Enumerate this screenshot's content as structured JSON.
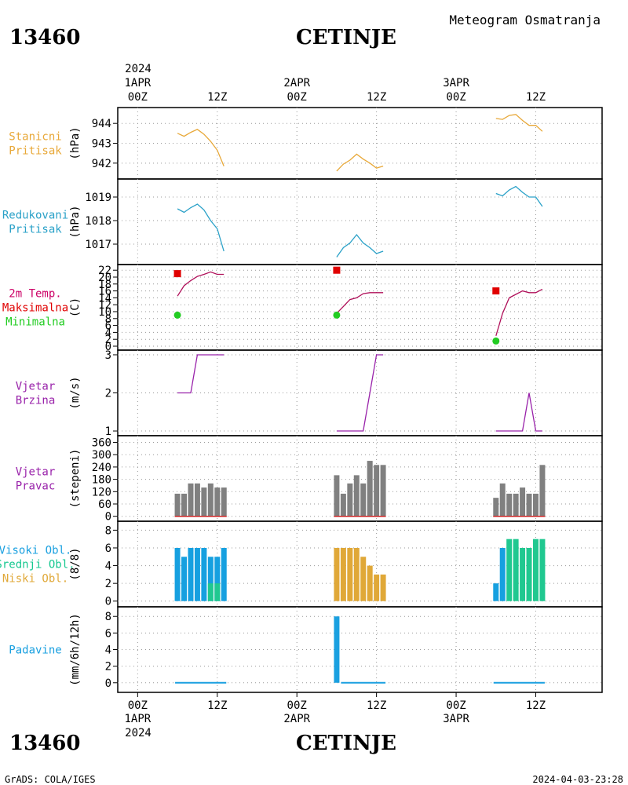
{
  "header": {
    "station_id": "13460",
    "station_name": "CETINJE",
    "product": "Meteogram Osmatranja"
  },
  "footer": {
    "station_id": "13460",
    "station_name": "CETINJE",
    "credit": "GrADS: COLA/IGES",
    "timestamp": "2024-04-03-23:28"
  },
  "time_axis": {
    "year": "2024",
    "top_labels": [
      {
        "t": 0,
        "day": "1APR",
        "hour": "00Z"
      },
      {
        "t": 12,
        "hour": "12Z"
      },
      {
        "t": 24,
        "day": "2APR",
        "hour": "00Z"
      },
      {
        "t": 36,
        "hour": "12Z"
      },
      {
        "t": 48,
        "day": "3APR",
        "hour": "00Z"
      },
      {
        "t": 60,
        "hour": "12Z"
      }
    ],
    "bottom_labels": [
      {
        "t": 0,
        "hour": "00Z",
        "day": "1APR"
      },
      {
        "t": 12,
        "hour": "12Z"
      },
      {
        "t": 24,
        "hour": "00Z",
        "day": "2APR"
      },
      {
        "t": 36,
        "hour": "12Z"
      },
      {
        "t": 48,
        "hour": "00Z",
        "day": "3APR"
      },
      {
        "t": 60,
        "hour": "12Z"
      }
    ],
    "range_hours": [
      -3,
      70
    ]
  },
  "chart_data": [
    {
      "type": "line",
      "name_lines": [
        "Stanicni",
        "Pritisak"
      ],
      "label_color": "#e8a838",
      "ylabel": "(hPa)",
      "ylim": [
        941.4,
        944.6
      ],
      "yticks": [
        942,
        943,
        944
      ],
      "series": [
        {
          "color": "#e8a838",
          "segments": [
            {
              "x": [
                6,
                7,
                8,
                9,
                10,
                11,
                12,
                13
              ],
              "y": [
                943.5,
                943.35,
                943.55,
                943.7,
                943.45,
                943.1,
                942.65,
                941.85
              ]
            },
            {
              "x": [
                30,
                31,
                32,
                33,
                34,
                35,
                36,
                37
              ],
              "y": [
                941.6,
                941.95,
                942.15,
                942.45,
                942.2,
                942.0,
                941.75,
                941.85
              ]
            },
            {
              "x": [
                54,
                55,
                56,
                57,
                58,
                59,
                60,
                61
              ],
              "y": [
                944.25,
                944.2,
                944.4,
                944.45,
                944.15,
                943.9,
                943.9,
                943.6
              ]
            }
          ]
        }
      ]
    },
    {
      "type": "line",
      "name_lines": [
        "Redukovani",
        "Pritisak"
      ],
      "label_color": "#2aa1c8",
      "ylabel": "(hPa)",
      "ylim": [
        1016.3,
        1019.6
      ],
      "yticks": [
        1017,
        1018,
        1019
      ],
      "series": [
        {
          "color": "#2aa1c8",
          "segments": [
            {
              "x": [
                6,
                7,
                8,
                9,
                10,
                11,
                12,
                13
              ],
              "y": [
                1018.5,
                1018.35,
                1018.55,
                1018.7,
                1018.45,
                1018.0,
                1017.65,
                1016.7
              ]
            },
            {
              "x": [
                30,
                31,
                32,
                33,
                34,
                35,
                36,
                37
              ],
              "y": [
                1016.45,
                1016.85,
                1017.05,
                1017.4,
                1017.05,
                1016.85,
                1016.6,
                1016.7
              ]
            },
            {
              "x": [
                54,
                55,
                56,
                57,
                58,
                59,
                60,
                61
              ],
              "y": [
                1019.15,
                1019.05,
                1019.3,
                1019.45,
                1019.2,
                1019.0,
                1019.0,
                1018.6
              ]
            }
          ]
        }
      ]
    },
    {
      "type": "line",
      "name_lines": [
        "2m Temp.",
        "Maksimalna",
        "Minimalna"
      ],
      "name_colors": [
        "#cc0066",
        "#e00000",
        "#22cc22"
      ],
      "ylabel": "(C)",
      "ylim": [
        0,
        22.5
      ],
      "yticks": [
        0,
        2,
        4,
        6,
        8,
        10,
        12,
        14,
        16,
        18,
        20,
        22
      ],
      "series": [
        {
          "color": "#b0105a",
          "segments": [
            {
              "x": [
                6,
                7,
                8,
                9,
                10,
                11,
                12,
                13
              ],
              "y": [
                14.5,
                17.5,
                19.0,
                20.2,
                20.8,
                21.5,
                20.8,
                20.8
              ]
            },
            {
              "x": [
                30,
                31,
                32,
                33,
                34,
                35,
                36,
                37
              ],
              "y": [
                9.5,
                11.5,
                13.5,
                14.0,
                15.2,
                15.5,
                15.5,
                15.5
              ]
            },
            {
              "x": [
                54,
                55,
                56,
                57,
                58,
                59,
                60,
                61
              ],
              "y": [
                3.0,
                9.5,
                14.0,
                15.0,
                16.0,
                15.5,
                15.5,
                16.5
              ]
            }
          ]
        }
      ],
      "markers": [
        {
          "shape": "square",
          "color": "#e00000",
          "points": [
            {
              "x": 6,
              "y": 21.0
            },
            {
              "x": 30,
              "y": 22.0
            },
            {
              "x": 54,
              "y": 16.0
            }
          ]
        },
        {
          "shape": "circle",
          "color": "#22cc22",
          "points": [
            {
              "x": 6,
              "y": 9.0
            },
            {
              "x": 30,
              "y": 9.0
            },
            {
              "x": 54,
              "y": 1.5
            }
          ]
        }
      ]
    },
    {
      "type": "line",
      "name_lines": [
        "Vjetar",
        "Brzina"
      ],
      "label_color": "#9922aa",
      "ylabel": "(m/s)",
      "ylim": [
        0.98,
        3.02
      ],
      "yticks": [
        1,
        2,
        3
      ],
      "series": [
        {
          "color": "#9922aa",
          "segments": [
            {
              "x": [
                6,
                7,
                8,
                9,
                10,
                11,
                12,
                13
              ],
              "y": [
                2,
                2,
                2,
                3,
                3,
                3,
                3,
                3
              ]
            },
            {
              "x": [
                30,
                31,
                32,
                33,
                34,
                35,
                36,
                37
              ],
              "y": [
                1,
                1,
                1,
                1,
                1,
                2,
                3,
                3
              ]
            },
            {
              "x": [
                54,
                55,
                56,
                57,
                58,
                59,
                60,
                61
              ],
              "y": [
                1,
                1,
                1,
                1,
                1,
                2,
                1,
                1
              ]
            }
          ]
        }
      ]
    },
    {
      "type": "bar",
      "name_lines": [
        "Vjetar",
        "Pravac"
      ],
      "label_color": "#9922aa",
      "ylabel": "(stepeni)",
      "ylim": [
        -5,
        362
      ],
      "yticks": [
        0,
        60,
        120,
        180,
        240,
        300,
        360
      ],
      "baseline_color": "#cc2222",
      "bar_groups": [
        {
          "color": "#808080",
          "x": [
            6,
            7,
            8,
            9,
            10,
            11,
            12,
            13
          ],
          "values": [
            110,
            110,
            160,
            160,
            140,
            160,
            140,
            140
          ]
        },
        {
          "color": "#808080",
          "x": [
            30,
            31,
            32,
            33,
            34,
            35,
            36,
            37
          ],
          "values": [
            200,
            110,
            160,
            200,
            160,
            270,
            250,
            250
          ]
        },
        {
          "color": "#808080",
          "x": [
            54,
            55,
            56,
            57,
            58,
            59,
            60,
            61
          ],
          "values": [
            90,
            160,
            110,
            110,
            140,
            110,
            110,
            250
          ]
        }
      ]
    },
    {
      "type": "bar",
      "name_lines": [
        "Visoki Obl.",
        "Srednji Obl.",
        "Niski Obl."
      ],
      "name_colors": [
        "#1aa0e0",
        "#16c890",
        "#e0a838"
      ],
      "ylabel": "(8/8)",
      "ylim": [
        -0.2,
        8.3
      ],
      "yticks": [
        0,
        2,
        4,
        6,
        8
      ],
      "bar_groups": [
        {
          "color": "#16a0e0",
          "x": [
            6,
            7,
            8,
            9,
            10,
            11,
            12,
            13
          ],
          "values": [
            6,
            5,
            6,
            6,
            6,
            5,
            5,
            6
          ]
        },
        {
          "color": "#20c890",
          "x": [
            11,
            12
          ],
          "values": [
            2,
            2
          ]
        },
        {
          "color": "#e0a838",
          "x": [
            30,
            31,
            32,
            33,
            34,
            35,
            36,
            37
          ],
          "values": [
            6,
            6,
            6,
            6,
            5,
            4,
            3,
            3
          ]
        },
        {
          "color": "#16a0e0",
          "x": [
            54,
            55
          ],
          "values": [
            2,
            6
          ]
        },
        {
          "color": "#20c890",
          "x": [
            56,
            57,
            58,
            59,
            60,
            61
          ],
          "values": [
            7,
            7,
            6,
            6,
            7,
            7
          ]
        }
      ]
    },
    {
      "type": "bar",
      "name_lines": [
        "Padavine"
      ],
      "label_color": "#1aa0e0",
      "ylabel": "(mm/6h/12h)",
      "ylim": [
        -0.4,
        8.4
      ],
      "yticks": [
        0,
        2,
        4,
        6,
        8
      ],
      "bar_groups": [
        {
          "color": "#1aa0e0",
          "x": [
            30
          ],
          "values": [
            8
          ]
        }
      ],
      "flat_lines": [
        {
          "color": "#1aa0e0",
          "x": [
            6,
            13
          ],
          "y": 0
        },
        {
          "color": "#1aa0e0",
          "x": [
            31,
            37
          ],
          "y": 0
        },
        {
          "color": "#1aa0e0",
          "x": [
            54,
            61
          ],
          "y": 0
        }
      ]
    }
  ]
}
